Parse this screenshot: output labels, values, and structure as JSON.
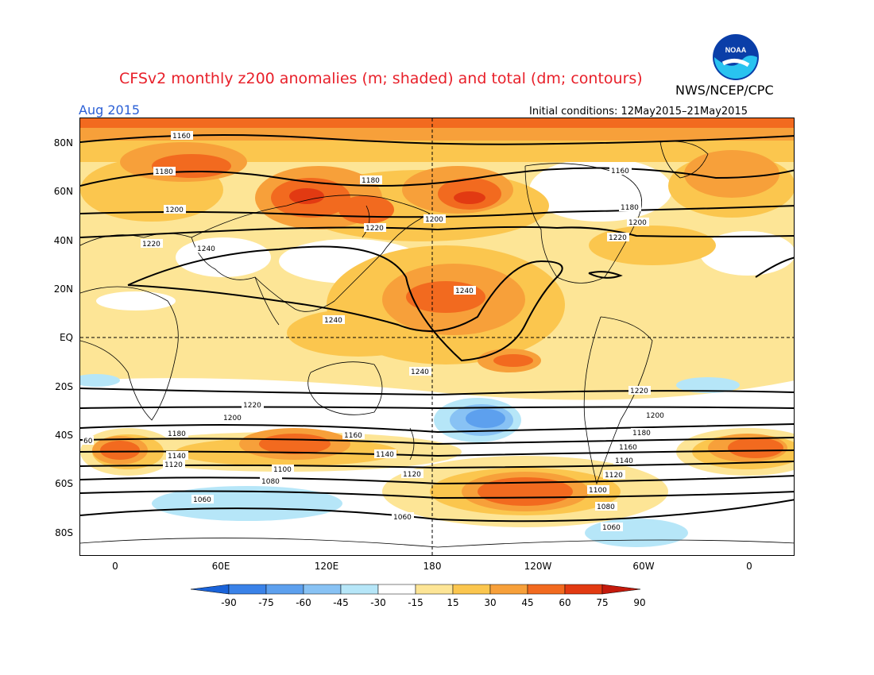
{
  "title": "CFSv2 monthly z200 anomalies (m; shaded) and total (dm; contours)",
  "organization": "NWS/NCEP/CPC",
  "logo_text": "NOAA",
  "month": "Aug 2015",
  "initial_conditions": "Initial conditions: 12May2015–21May2015",
  "lat_ticks": [
    "80N",
    "60N",
    "40N",
    "20N",
    "EQ",
    "20S",
    "40S",
    "60S",
    "80S"
  ],
  "lon_ticks": [
    "0",
    "60E",
    "120E",
    "180",
    "120W",
    "60W",
    "0"
  ],
  "colorbar": {
    "labels": [
      "-90",
      "-75",
      "-60",
      "-45",
      "-30",
      "-15",
      "15",
      "30",
      "45",
      "60",
      "75",
      "90"
    ],
    "colors": [
      "#1a63d9",
      "#3a82e8",
      "#5da0ee",
      "#88c2f4",
      "#b6e6f8",
      "#ffffff",
      "#fde596",
      "#fbc64e",
      "#f7a03a",
      "#f26a1f",
      "#e23a12",
      "#c41a0c"
    ]
  },
  "contour_labels": [
    "1160",
    "1180",
    "1200",
    "1220",
    "1240",
    "1060",
    "1080",
    "1100",
    "1120",
    "1140",
    "60"
  ]
}
